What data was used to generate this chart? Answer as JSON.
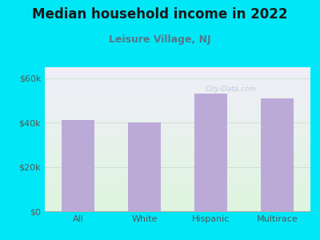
{
  "title": "Median household income in 2022",
  "subtitle": "Leisure Village, NJ",
  "categories": [
    "All",
    "White",
    "Hispanic",
    "Multirace"
  ],
  "values": [
    41000,
    40000,
    53000,
    51000
  ],
  "bar_color": "#bbaad8",
  "background_outer": "#00e8f8",
  "title_fontsize": 12,
  "subtitle_fontsize": 9,
  "tick_fontsize": 8,
  "ylim": [
    0,
    65000
  ],
  "yticks": [
    0,
    20000,
    40000,
    60000
  ],
  "ytick_labels": [
    "$0",
    "$20k",
    "$40k",
    "$60k"
  ],
  "watermark": "City-Data.com",
  "title_color": "#1a1a1a",
  "subtitle_color": "#557788",
  "tick_color": "#555555"
}
